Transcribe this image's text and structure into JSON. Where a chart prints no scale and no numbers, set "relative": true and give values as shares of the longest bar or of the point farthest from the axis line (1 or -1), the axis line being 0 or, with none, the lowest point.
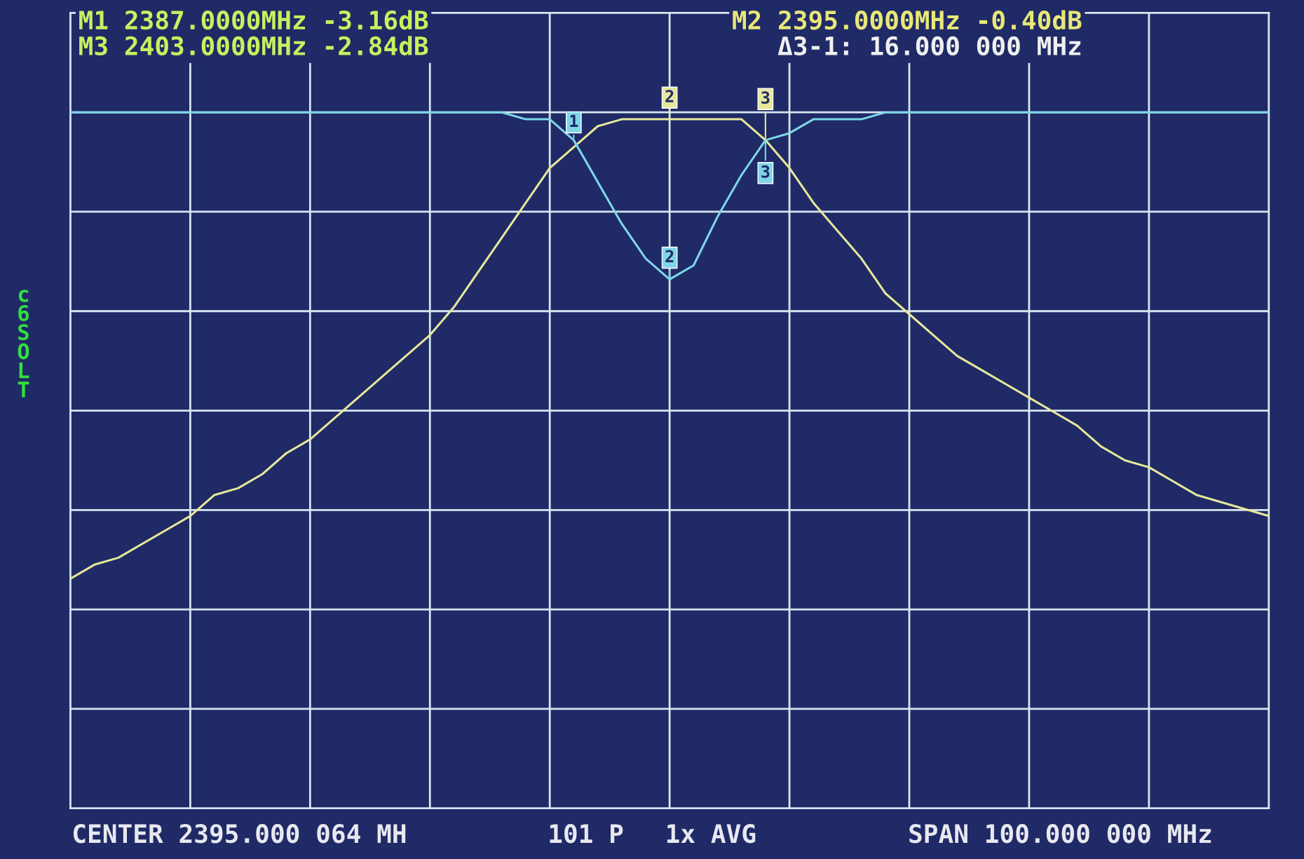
{
  "chart_data": {
    "type": "line",
    "relative": true,
    "categories": [
      null,
      null,
      null,
      null,
      null,
      null,
      null,
      null,
      null,
      null,
      null,
      null,
      null,
      null,
      null,
      null,
      null,
      null,
      null,
      null,
      null,
      null,
      null,
      null,
      null,
      null,
      null,
      null,
      null,
      null,
      null,
      null,
      null,
      null,
      null,
      null,
      null,
      null,
      null,
      null,
      null,
      null,
      null,
      null,
      null,
      null,
      null,
      null,
      null,
      null,
      null
    ],
    "grid": true,
    "line_style": "solid",
    "series": [
      {
        "color": "#e6e89a",
        "values": [
          0.33,
          0.35,
          0.36,
          0.38,
          0.4,
          0.42,
          0.45,
          0.46,
          0.48,
          0.51,
          0.53,
          0.56,
          0.59,
          0.62,
          0.65,
          0.68,
          0.72,
          0.77,
          0.82,
          0.87,
          0.92,
          0.95,
          0.98,
          0.99,
          0.99,
          0.99,
          0.99,
          0.99,
          0.99,
          0.96,
          0.92,
          0.87,
          0.83,
          0.79,
          0.74,
          0.71,
          0.68,
          0.65,
          0.63,
          0.61,
          0.59,
          0.57,
          0.55,
          0.52,
          0.5,
          0.49,
          0.47,
          0.45,
          0.44,
          0.43,
          0.42
        ]
      },
      {
        "color": "#7fd6e8",
        "values": [
          1,
          1,
          1,
          1,
          1,
          1,
          1,
          1,
          1,
          1,
          1,
          1,
          1,
          1,
          1,
          1,
          1,
          1,
          1,
          0.99,
          0.99,
          0.96,
          0.9,
          0.84,
          0.79,
          0.76,
          0.78,
          0.85,
          0.91,
          0.96,
          0.97,
          0.99,
          0.99,
          0.99,
          1,
          1,
          1,
          1,
          1,
          1,
          1,
          1,
          1,
          1,
          1,
          1,
          1,
          1,
          1,
          1,
          1
        ]
      }
    ],
    "annotations": [
      "M1 2387.0000MHz -3.16dB",
      "M3 2403.0000MHz -2.84dB",
      "M2 2395.0000MHz -0.40dB",
      "Δ3-1: 16.000 000 MHz",
      "CENTER 2395.000 064 MH",
      "101 P",
      "1x AVG",
      "SPAN 100.000 000 MHz",
      "c6 SOLT",
      "1",
      "2",
      "3",
      "2",
      "3"
    ]
  }
}
